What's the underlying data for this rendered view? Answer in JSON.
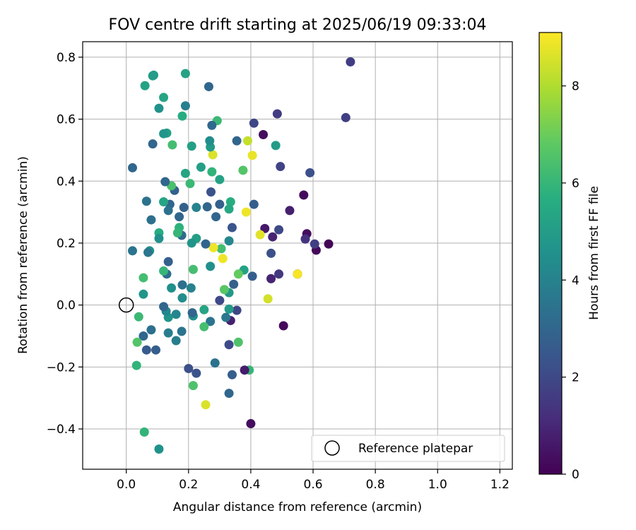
{
  "chart_data": {
    "type": "scatter",
    "title": "FOV centre drift starting at 2025/06/19 09:33:04",
    "xlabel": "Angular distance from reference (arcmin)",
    "ylabel": "Rotation from reference (arcmin)",
    "xlim": [
      -0.14,
      1.24
    ],
    "ylim": [
      -0.53,
      0.85
    ],
    "xticks": [
      0.0,
      0.2,
      0.4,
      0.6,
      0.8,
      1.0,
      1.2
    ],
    "xtick_labels": [
      "0.0",
      "0.2",
      "0.4",
      "0.6",
      "0.8",
      "1.0",
      "1.2"
    ],
    "yticks": [
      -0.4,
      -0.2,
      0.0,
      0.2,
      0.4,
      0.6,
      0.8
    ],
    "ytick_labels": [
      "−0.4",
      "−0.2",
      "0.0",
      "0.2",
      "0.4",
      "0.6",
      "0.8"
    ],
    "grid": true,
    "colormap": "viridis",
    "colorbar": {
      "label": "Hours from first FF file",
      "range": [
        0,
        9.1
      ],
      "ticks": [
        0,
        2,
        4,
        6,
        8
      ],
      "tick_labels": [
        "0",
        "2",
        "4",
        "6",
        "8"
      ]
    },
    "reference_marker": {
      "x": 0.0,
      "y": 0.0,
      "label": "Reference platepar"
    },
    "legend": {
      "position": "lower-right",
      "entries": [
        "Reference platepar"
      ]
    },
    "points": [
      {
        "x": 0.72,
        "y": 0.785,
        "h": 1.6
      },
      {
        "x": 0.705,
        "y": 0.605,
        "h": 1.7
      },
      {
        "x": 0.65,
        "y": 0.197,
        "h": 0.1
      },
      {
        "x": 0.61,
        "y": 0.177,
        "h": 0.2
      },
      {
        "x": 0.605,
        "y": 0.197,
        "h": 1.7
      },
      {
        "x": 0.59,
        "y": 0.427,
        "h": 2.2
      },
      {
        "x": 0.58,
        "y": 0.23,
        "h": 0.3
      },
      {
        "x": 0.575,
        "y": 0.213,
        "h": 1.3
      },
      {
        "x": 0.57,
        "y": 0.355,
        "h": 0.2
      },
      {
        "x": 0.55,
        "y": 0.1,
        "h": 0.1
      },
      {
        "x": 0.55,
        "y": 0.1,
        "h": 9.0
      },
      {
        "x": 0.525,
        "y": 0.305,
        "h": 0.8
      },
      {
        "x": 0.505,
        "y": -0.067,
        "h": 0.2
      },
      {
        "x": 0.495,
        "y": 0.447,
        "h": 1.8
      },
      {
        "x": 0.49,
        "y": 0.1,
        "h": 1.5
      },
      {
        "x": 0.49,
        "y": 0.243,
        "h": 2.0
      },
      {
        "x": 0.485,
        "y": 0.617,
        "h": 1.6
      },
      {
        "x": 0.48,
        "y": 0.515,
        "h": 5.0
      },
      {
        "x": 0.47,
        "y": 0.22,
        "h": 0.9
      },
      {
        "x": 0.465,
        "y": 0.085,
        "h": 0.9
      },
      {
        "x": 0.465,
        "y": 0.167,
        "h": 2.2
      },
      {
        "x": 0.455,
        "y": 0.02,
        "h": 8.5
      },
      {
        "x": 0.445,
        "y": 0.247,
        "h": 0.6
      },
      {
        "x": 0.44,
        "y": 0.55,
        "h": 0.3
      },
      {
        "x": 0.43,
        "y": 0.227,
        "h": 8.7
      },
      {
        "x": 0.41,
        "y": 0.587,
        "h": 1.9
      },
      {
        "x": 0.41,
        "y": 0.325,
        "h": 2.7
      },
      {
        "x": 0.405,
        "y": 0.483,
        "h": 8.8
      },
      {
        "x": 0.405,
        "y": 0.093,
        "h": 2.7
      },
      {
        "x": 0.4,
        "y": -0.383,
        "h": 0.3
      },
      {
        "x": 0.395,
        "y": -0.21,
        "h": 6.0
      },
      {
        "x": 0.39,
        "y": 0.53,
        "h": 8.3
      },
      {
        "x": 0.385,
        "y": 0.3,
        "h": 8.9
      },
      {
        "x": 0.38,
        "y": -0.21,
        "h": 0.7
      },
      {
        "x": 0.378,
        "y": 0.113,
        "h": 5.2
      },
      {
        "x": 0.375,
        "y": 0.435,
        "h": 6.6
      },
      {
        "x": 0.36,
        "y": 0.1,
        "h": 6.9
      },
      {
        "x": 0.36,
        "y": -0.12,
        "h": 6.5
      },
      {
        "x": 0.355,
        "y": 0.53,
        "h": 3.0
      },
      {
        "x": 0.355,
        "y": -0.017,
        "h": 1.9
      },
      {
        "x": 0.345,
        "y": 0.067,
        "h": 2.8
      },
      {
        "x": 0.34,
        "y": 0.25,
        "h": 2.4
      },
      {
        "x": 0.34,
        "y": -0.225,
        "h": 2.7
      },
      {
        "x": 0.335,
        "y": 0.333,
        "h": 5.6
      },
      {
        "x": 0.335,
        "y": -0.05,
        "h": 0.8
      },
      {
        "x": 0.33,
        "y": 0.31,
        "h": 5.4
      },
      {
        "x": 0.33,
        "y": 0.207,
        "h": 4.2
      },
      {
        "x": 0.33,
        "y": 0.04,
        "h": 4.8
      },
      {
        "x": 0.33,
        "y": -0.013,
        "h": 4.9
      },
      {
        "x": 0.33,
        "y": -0.128,
        "h": 2.1
      },
      {
        "x": 0.33,
        "y": -0.285,
        "h": 3.0
      },
      {
        "x": 0.32,
        "y": -0.04,
        "h": 3.6
      },
      {
        "x": 0.315,
        "y": 0.05,
        "h": 6.7
      },
      {
        "x": 0.31,
        "y": 0.15,
        "h": 8.9
      },
      {
        "x": 0.305,
        "y": 0.182,
        "h": 6.3
      },
      {
        "x": 0.3,
        "y": 0.405,
        "h": 5.2
      },
      {
        "x": 0.3,
        "y": 0.325,
        "h": 2.8
      },
      {
        "x": 0.3,
        "y": 0.015,
        "h": 2.0
      },
      {
        "x": 0.292,
        "y": 0.595,
        "h": 6.1
      },
      {
        "x": 0.288,
        "y": 0.285,
        "h": 3.0
      },
      {
        "x": 0.285,
        "y": -0.187,
        "h": 3.4
      },
      {
        "x": 0.28,
        "y": 0.185,
        "h": 8.9
      },
      {
        "x": 0.278,
        "y": 0.485,
        "h": 8.6
      },
      {
        "x": 0.275,
        "y": 0.58,
        "h": 3.1
      },
      {
        "x": 0.275,
        "y": 0.43,
        "h": 5.9
      },
      {
        "x": 0.272,
        "y": 0.365,
        "h": 2.3
      },
      {
        "x": 0.27,
        "y": 0.51,
        "h": 4.9
      },
      {
        "x": 0.27,
        "y": 0.125,
        "h": 4.5
      },
      {
        "x": 0.27,
        "y": -0.053,
        "h": 3.5
      },
      {
        "x": 0.268,
        "y": 0.53,
        "h": 4.4
      },
      {
        "x": 0.265,
        "y": 0.705,
        "h": 3.0
      },
      {
        "x": 0.26,
        "y": 0.317,
        "h": 3.0
      },
      {
        "x": 0.255,
        "y": 0.197,
        "h": 2.9
      },
      {
        "x": 0.25,
        "y": -0.015,
        "h": 5.3
      },
      {
        "x": 0.25,
        "y": -0.07,
        "h": 6.3
      },
      {
        "x": 0.255,
        "y": -0.322,
        "h": 8.6
      },
      {
        "x": 0.24,
        "y": 0.445,
        "h": 5.1
      },
      {
        "x": 0.225,
        "y": 0.315,
        "h": 4.0
      },
      {
        "x": 0.225,
        "y": 0.215,
        "h": 5.1
      },
      {
        "x": 0.225,
        "y": -0.22,
        "h": 2.3
      },
      {
        "x": 0.215,
        "y": 0.115,
        "h": 6.3
      },
      {
        "x": 0.215,
        "y": -0.035,
        "h": 4.5
      },
      {
        "x": 0.215,
        "y": -0.26,
        "h": 6.5
      },
      {
        "x": 0.212,
        "y": -0.025,
        "h": 3.0
      },
      {
        "x": 0.21,
        "y": 0.513,
        "h": 5.1
      },
      {
        "x": 0.21,
        "y": 0.2,
        "h": 4.7
      },
      {
        "x": 0.208,
        "y": 0.055,
        "h": 4.0
      },
      {
        "x": 0.205,
        "y": 0.392,
        "h": 6.1
      },
      {
        "x": 0.2,
        "y": -0.205,
        "h": 2.2
      },
      {
        "x": 0.19,
        "y": 0.747,
        "h": 5.2
      },
      {
        "x": 0.19,
        "y": 0.643,
        "h": 3.9
      },
      {
        "x": 0.19,
        "y": 0.425,
        "h": 5.3
      },
      {
        "x": 0.185,
        "y": 0.315,
        "h": 2.8
      },
      {
        "x": 0.18,
        "y": 0.61,
        "h": 5.6
      },
      {
        "x": 0.18,
        "y": 0.065,
        "h": 3.3
      },
      {
        "x": 0.178,
        "y": 0.225,
        "h": 3.2
      },
      {
        "x": 0.18,
        "y": 0.023,
        "h": 4.4
      },
      {
        "x": 0.178,
        "y": -0.085,
        "h": 3.5
      },
      {
        "x": 0.17,
        "y": 0.285,
        "h": 3.0
      },
      {
        "x": 0.17,
        "y": 0.25,
        "h": 5.8
      },
      {
        "x": 0.165,
        "y": 0.233,
        "h": 6.0
      },
      {
        "x": 0.16,
        "y": -0.03,
        "h": 4.1
      },
      {
        "x": 0.16,
        "y": -0.115,
        "h": 3.8
      },
      {
        "x": 0.155,
        "y": 0.37,
        "h": 2.8
      },
      {
        "x": 0.148,
        "y": 0.517,
        "h": 6.3
      },
      {
        "x": 0.145,
        "y": 0.385,
        "h": 6.4
      },
      {
        "x": 0.145,
        "y": 0.055,
        "h": 4.5
      },
      {
        "x": 0.14,
        "y": 0.325,
        "h": 3.0
      },
      {
        "x": 0.135,
        "y": 0.305,
        "h": 3.4
      },
      {
        "x": 0.135,
        "y": 0.14,
        "h": 2.8
      },
      {
        "x": 0.135,
        "y": -0.04,
        "h": 4.7
      },
      {
        "x": 0.135,
        "y": -0.09,
        "h": 3.8
      },
      {
        "x": 0.13,
        "y": 0.555,
        "h": 5.1
      },
      {
        "x": 0.13,
        "y": 0.1,
        "h": 3.2
      },
      {
        "x": 0.128,
        "y": -0.02,
        "h": 4.2
      },
      {
        "x": 0.125,
        "y": 0.398,
        "h": 3.0
      },
      {
        "x": 0.12,
        "y": 0.67,
        "h": 5.3
      },
      {
        "x": 0.12,
        "y": 0.553,
        "h": 4.7
      },
      {
        "x": 0.12,
        "y": 0.333,
        "h": 5.3
      },
      {
        "x": 0.12,
        "y": 0.11,
        "h": 6.0
      },
      {
        "x": 0.12,
        "y": -0.005,
        "h": 3.0
      },
      {
        "x": 0.105,
        "y": 0.635,
        "h": 4.6
      },
      {
        "x": 0.105,
        "y": 0.233,
        "h": 5.6
      },
      {
        "x": 0.105,
        "y": 0.215,
        "h": 4.5
      },
      {
        "x": 0.105,
        "y": -0.465,
        "h": 4.6
      },
      {
        "x": 0.095,
        "y": -0.145,
        "h": 2.7
      },
      {
        "x": 0.088,
        "y": 0.742,
        "h": 4.9
      },
      {
        "x": 0.085,
        "y": 0.74,
        "h": 5.0
      },
      {
        "x": 0.085,
        "y": 0.52,
        "h": 3.0
      },
      {
        "x": 0.08,
        "y": 0.275,
        "h": 3.3
      },
      {
        "x": 0.08,
        "y": -0.08,
        "h": 3.3
      },
      {
        "x": 0.075,
        "y": 0.175,
        "h": 4.5
      },
      {
        "x": 0.07,
        "y": 0.17,
        "h": 3.6
      },
      {
        "x": 0.065,
        "y": 0.335,
        "h": 3.4
      },
      {
        "x": 0.065,
        "y": -0.145,
        "h": 2.6
      },
      {
        "x": 0.06,
        "y": 0.708,
        "h": 5.2
      },
      {
        "x": 0.058,
        "y": -0.41,
        "h": 5.9
      },
      {
        "x": 0.055,
        "y": 0.088,
        "h": 6.3
      },
      {
        "x": 0.055,
        "y": 0.035,
        "h": 4.7
      },
      {
        "x": 0.055,
        "y": -0.1,
        "h": 3.0
      },
      {
        "x": 0.04,
        "y": -0.038,
        "h": 6.1
      },
      {
        "x": 0.035,
        "y": -0.12,
        "h": 6.6
      },
      {
        "x": 0.033,
        "y": -0.195,
        "h": 5.9
      },
      {
        "x": 0.02,
        "y": 0.443,
        "h": 3.0
      },
      {
        "x": 0.02,
        "y": 0.175,
        "h": 3.5
      }
    ]
  }
}
